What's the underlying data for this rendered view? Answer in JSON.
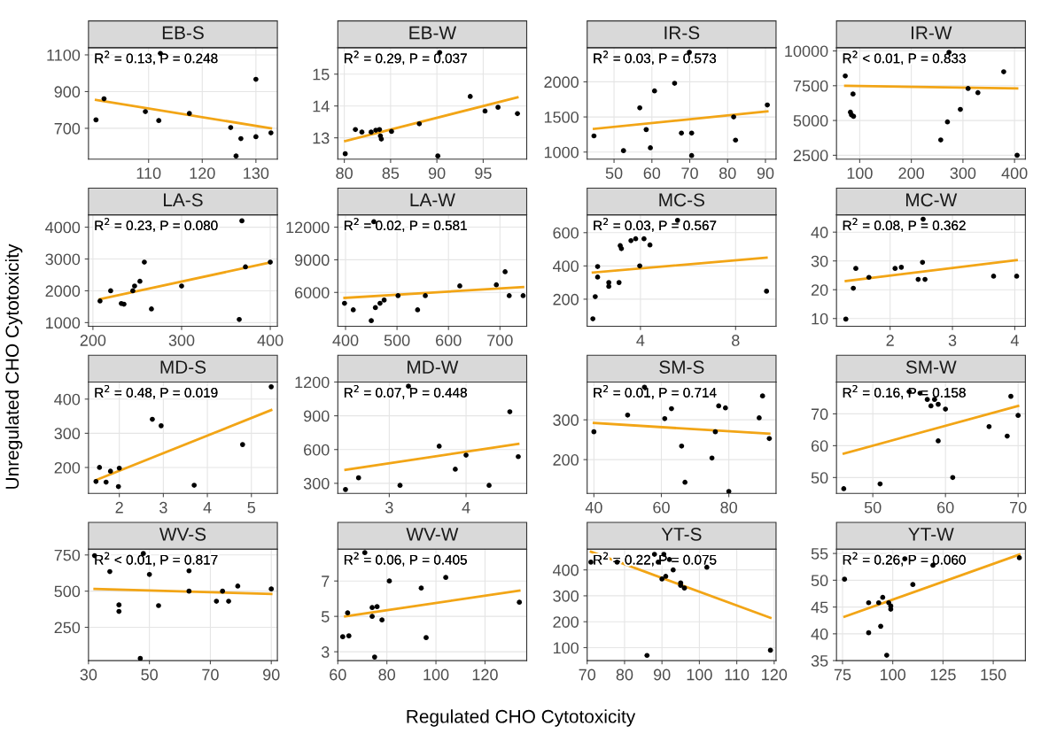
{
  "chart_data": [
    {
      "type": "scatter",
      "title": "EB-S",
      "xlim": [
        98.8,
        134
      ],
      "ylim": [
        532,
        1139
      ],
      "xticks": [
        110,
        120,
        130
      ],
      "yticks": [
        700,
        900,
        1100
      ],
      "grid": true,
      "annotations": [
        "R$^{2}$ = 0.13, P = 0.248"
      ],
      "ylabel": "Unregulated CHO Cytotoxicity",
      "series": [
        {
          "marker": "circle",
          "color": "#000000",
          "x": [
            100.2,
            101.7,
            112.2,
            109.4,
            111.9,
            117.6,
            125.3,
            127.2,
            126.3,
            130,
            130,
            132.8
          ],
          "values": [
            746,
            861,
            1108,
            791,
            742,
            781,
            704,
            644,
            549,
            967,
            654,
            675
          ]
        },
        {
          "type": "line",
          "color": "#f2a516",
          "x": [
            100.2,
            132.8
          ],
          "values": [
            855,
            700
          ]
        }
      ]
    },
    {
      "type": "scatter",
      "title": "EB-W",
      "xlim": [
        79.3,
        99.7
      ],
      "ylim": [
        12.33,
        15.83
      ],
      "xticks": [
        80,
        85,
        90,
        95
      ],
      "yticks": [
        13,
        14,
        15
      ],
      "grid": true,
      "annotations": [
        "R$^{2}$ = 0.29, P = 0.037"
      ],
      "series": [
        {
          "marker": "circle",
          "color": "#000000",
          "x": [
            80.1,
            81.2,
            81.9,
            82.9,
            83.4,
            83.8,
            83.9,
            84,
            85.1,
            88.1,
            90.3,
            90.1,
            93.6,
            95.2,
            96.6,
            98.7
          ],
          "values": [
            12.5,
            13.26,
            13.18,
            13.18,
            13.24,
            13.26,
            13.06,
            12.96,
            13.2,
            13.44,
            15.68,
            12.43,
            14.3,
            13.84,
            13.96,
            13.76
          ]
        },
        {
          "type": "line",
          "color": "#f2a516",
          "x": [
            80.1,
            98.7
          ],
          "values": [
            12.9,
            14.27
          ]
        }
      ]
    },
    {
      "type": "scatter",
      "title": "IR-S",
      "xlim": [
        42.9,
        92.8
      ],
      "ylim": [
        899,
        2486
      ],
      "xticks": [
        50,
        60,
        70,
        80,
        90
      ],
      "yticks": [
        1000,
        1500,
        2000
      ],
      "grid": true,
      "annotations": [
        "R$^{2}$ = 0.03, P = 0.573"
      ],
      "series": [
        {
          "marker": "circle",
          "color": "#000000",
          "x": [
            44.7,
            52.5,
            56.8,
            58.5,
            59.6,
            60.7,
            66,
            67.8,
            69.9,
            70.5,
            70.5,
            81.6,
            82.1,
            90.5
          ],
          "values": [
            1230,
            1020,
            1630,
            1320,
            1060,
            1870,
            1980,
            1270,
            2420,
            1270,
            950,
            1500,
            1170,
            1670
          ]
        },
        {
          "type": "line",
          "color": "#f2a516",
          "x": [
            44.7,
            90.5
          ],
          "values": [
            1330,
            1580
          ]
        }
      ]
    },
    {
      "type": "scatter",
      "title": "IR-W",
      "xlim": [
        55,
        421
      ],
      "ylim": [
        2222,
        10231
      ],
      "xticks": [
        100,
        200,
        300,
        400
      ],
      "yticks": [
        2500,
        5000,
        7500,
        10000
      ],
      "grid": true,
      "annotations": [
        "R$^{2}$ < 0.01, P = 0.833"
      ],
      "series": [
        {
          "marker": "circle",
          "color": "#000000",
          "x": [
            72,
            87,
            82,
            84,
            88,
            273,
            257,
            270,
            295,
            310,
            329,
            379,
            405
          ],
          "values": [
            8200,
            6900,
            5600,
            5400,
            5300,
            9900,
            3600,
            4900,
            5800,
            7300,
            7000,
            8500,
            2500
          ]
        },
        {
          "type": "line",
          "color": "#f2a516",
          "x": [
            72,
            405
          ],
          "values": [
            7500,
            7300
          ]
        }
      ]
    },
    {
      "type": "scatter",
      "title": "LA-S",
      "xlim": [
        195,
        408
      ],
      "ylim": [
        884,
        4387
      ],
      "xticks": [
        200,
        300,
        400
      ],
      "yticks": [
        1000,
        2000,
        3000,
        4000
      ],
      "grid": true,
      "annotations": [
        "R$^{2}$ = 0.23, P = 0.080"
      ],
      "series": [
        {
          "marker": "circle",
          "color": "#000000",
          "x": [
            208,
            220,
            232,
            235,
            245,
            247,
            253,
            258,
            266,
            300,
            365,
            368,
            372,
            400
          ],
          "values": [
            1680,
            2000,
            1600,
            1580,
            2000,
            2150,
            2300,
            2900,
            1430,
            2150,
            1100,
            4200,
            2750,
            2900
          ]
        },
        {
          "type": "line",
          "color": "#f2a516",
          "x": [
            208,
            400
          ],
          "values": [
            1740,
            2890
          ]
        }
      ]
    },
    {
      "type": "scatter",
      "title": "LA-W",
      "xlim": [
        385,
        752
      ],
      "ylim": [
        2887,
        13130
      ],
      "xticks": [
        400,
        500,
        600,
        700
      ],
      "yticks": [
        6000,
        9000,
        12000
      ],
      "grid": true,
      "annotations": [
        "R$^{2}$ = 0.02, P = 0.581"
      ],
      "series": [
        {
          "marker": "circle",
          "color": "#000000",
          "x": [
            398,
            415,
            450,
            455,
            458,
            467,
            475,
            502,
            540,
            555,
            622,
            693,
            710,
            718,
            745
          ],
          "values": [
            5000,
            4400,
            3400,
            12500,
            4600,
            5000,
            5300,
            5700,
            4400,
            5700,
            6600,
            6700,
            7900,
            5700,
            5700
          ]
        },
        {
          "type": "line",
          "color": "#f2a516",
          "x": [
            398,
            745
          ],
          "values": [
            5500,
            6500
          ]
        }
      ]
    },
    {
      "type": "scatter",
      "title": "MC-S",
      "xlim": [
        1.76,
        9.7
      ],
      "ylim": [
        37,
        707
      ],
      "xticks": [
        4,
        8
      ],
      "yticks": [
        200,
        400,
        600
      ],
      "grid": true,
      "annotations": [
        "R$^{2}$ = 0.03, P = 0.567"
      ],
      "series": [
        {
          "marker": "circle",
          "color": "#000000",
          "x": [
            2.0,
            2.1,
            2.2,
            2.2,
            2.67,
            2.67,
            3.1,
            3.15,
            3.2,
            3.6,
            3.8,
            3.97,
            4.15,
            4.4,
            5.56,
            9.3
          ],
          "values": [
            82,
            215,
            333,
            396,
            300,
            277,
            300,
            522,
            504,
            552,
            563,
            400,
            563,
            526,
            674,
            248
          ]
        },
        {
          "type": "line",
          "color": "#f2a516",
          "x": [
            2.0,
            9.3
          ],
          "values": [
            360,
            450
          ]
        }
      ]
    },
    {
      "type": "scatter",
      "title": "MC-W",
      "xlim": [
        1.14,
        4.17
      ],
      "ylim": [
        7.3,
        46
      ],
      "xticks": [
        2,
        3,
        4
      ],
      "yticks": [
        10,
        20,
        30,
        40
      ],
      "grid": true,
      "annotations": [
        "R$^{2}$ = 0.08, P = 0.362"
      ],
      "series": [
        {
          "marker": "circle",
          "color": "#000000",
          "x": [
            1.29,
            1.41,
            1.45,
            1.66,
            2.08,
            2.18,
            2.45,
            2.52,
            2.53,
            2.56,
            3.66,
            4.03
          ],
          "values": [
            9.8,
            20.5,
            27.4,
            24.3,
            27.4,
            27.8,
            23.6,
            29.5,
            44.5,
            23.6,
            24.7,
            24.7
          ]
        },
        {
          "type": "line",
          "color": "#f2a516",
          "x": [
            1.29,
            4.03
          ],
          "values": [
            23,
            30.3
          ]
        }
      ]
    },
    {
      "type": "scatter",
      "title": "MD-S",
      "xlim": [
        1.3,
        5.59
      ],
      "ylim": [
        124,
        450
      ],
      "xticks": [
        2,
        3,
        4,
        5
      ],
      "yticks": [
        200,
        300,
        400
      ],
      "grid": true,
      "annotations": [
        "R$^{2}$ = 0.48, P = 0.019"
      ],
      "series": [
        {
          "marker": "circle",
          "color": "#000000",
          "x": [
            1.47,
            1.55,
            1.7,
            1.8,
            1.98,
            2.0,
            2.75,
            2.95,
            3.7,
            4.8,
            5.45
          ],
          "values": [
            159,
            200,
            157,
            189,
            144,
            198,
            341,
            322,
            148,
            267,
            436
          ]
        },
        {
          "type": "line",
          "color": "#f2a516",
          "x": [
            1.47,
            5.45
          ],
          "values": [
            163,
            368
          ]
        }
      ]
    },
    {
      "type": "scatter",
      "title": "MD-W",
      "xlim": [
        2.33,
        4.79
      ],
      "ylim": [
        210,
        1200
      ],
      "xticks": [
        3,
        4
      ],
      "yticks": [
        300,
        600,
        900,
        1200
      ],
      "grid": true,
      "annotations": [
        "R$^{2}$ = 0.07, P = 0.448"
      ],
      "series": [
        {
          "marker": "circle",
          "color": "#000000",
          "x": [
            2.43,
            2.6,
            3.14,
            3.25,
            3.65,
            3.86,
            4.0,
            4.3,
            4.57,
            4.68
          ],
          "values": [
            245,
            349,
            282,
            1163,
            630,
            425,
            550,
            282,
            936,
            537
          ]
        },
        {
          "type": "line",
          "color": "#f2a516",
          "x": [
            2.43,
            4.68
          ],
          "values": [
            420,
            650
          ]
        }
      ]
    },
    {
      "type": "scatter",
      "title": "SM-S",
      "xlim": [
        38,
        94
      ],
      "ylim": [
        115,
        395
      ],
      "xticks": [
        40,
        60,
        80
      ],
      "yticks": [
        200,
        300
      ],
      "grid": true,
      "annotations": [
        "R$^{2}$ = 0.01, P = 0.714"
      ],
      "series": [
        {
          "marker": "circle",
          "color": "#000000",
          "x": [
            40,
            50,
            55,
            61,
            63,
            66,
            67,
            75,
            76,
            77,
            79,
            80,
            89,
            90,
            92
          ],
          "values": [
            270,
            312,
            382,
            303,
            328,
            234,
            143,
            204,
            270,
            335,
            330,
            120,
            305,
            360,
            253
          ]
        },
        {
          "type": "line",
          "color": "#f2a516",
          "x": [
            40,
            92
          ],
          "values": [
            292,
            265
          ]
        }
      ]
    },
    {
      "type": "scatter",
      "title": "SM-W",
      "xlim": [
        45,
        71
      ],
      "ylim": [
        45,
        80
      ],
      "xticks": [
        50,
        60,
        70
      ],
      "yticks": [
        50,
        60,
        70
      ],
      "grid": true,
      "annotations": [
        "R$^{2}$ = 0.16, P = 0.158"
      ],
      "series": [
        {
          "marker": "circle",
          "color": "#000000",
          "x": [
            46,
            51,
            55,
            56.5,
            57.5,
            58,
            58.5,
            59,
            59,
            60,
            61,
            66,
            68.5,
            69,
            70
          ],
          "values": [
            46.5,
            48,
            77,
            76.5,
            74.5,
            72.5,
            74.5,
            73,
            61.5,
            71.5,
            50,
            66,
            63,
            75.5,
            69.5
          ]
        },
        {
          "type": "line",
          "color": "#f2a516",
          "x": [
            46,
            70
          ],
          "values": [
            57.5,
            72.5
          ]
        }
      ]
    },
    {
      "type": "scatter",
      "title": "WV-S",
      "xlim": [
        30,
        92
      ],
      "ylim": [
        20,
        790
      ],
      "xticks": [
        30,
        50,
        70,
        90
      ],
      "yticks": [
        250,
        500,
        750
      ],
      "grid": true,
      "annotations": [
        "R$^{2}$ < 0.01, P = 0.817"
      ],
      "series": [
        {
          "marker": "circle",
          "color": "#000000",
          "x": [
            32,
            37,
            40,
            40,
            47,
            48,
            50,
            53,
            63,
            63,
            72,
            74,
            76,
            79,
            90
          ],
          "values": [
            745,
            635,
            405,
            360,
            35,
            760,
            615,
            400,
            640,
            500,
            430,
            500,
            430,
            535,
            515
          ]
        },
        {
          "type": "line",
          "color": "#f2a516",
          "x": [
            32,
            90
          ],
          "values": [
            515,
            480
          ]
        }
      ]
    },
    {
      "type": "scatter",
      "title": "WV-W",
      "xlim": [
        60,
        137
      ],
      "ylim": [
        2.5,
        8.8
      ],
      "xticks": [
        60,
        80,
        100,
        120
      ],
      "yticks": [
        3,
        5,
        7
      ],
      "grid": true,
      "annotations": [
        "R$^{2}$ = 0.06, P = 0.405"
      ],
      "xlabel": "Regulated CHO Cytotoxicity",
      "series": [
        {
          "marker": "circle",
          "color": "#000000",
          "x": [
            62,
            64,
            64.5,
            71,
            74,
            74,
            75,
            76,
            78,
            81,
            94,
            96,
            104,
            134
          ],
          "values": [
            3.85,
            5.2,
            3.9,
            8.6,
            5.0,
            5.5,
            2.7,
            5.55,
            4.8,
            7.0,
            6.6,
            3.8,
            7.2,
            5.8
          ]
        },
        {
          "type": "line",
          "color": "#f2a516",
          "x": [
            63,
            134
          ],
          "values": [
            5.0,
            6.45
          ]
        }
      ]
    },
    {
      "type": "scatter",
      "title": "YT-S",
      "xlim": [
        70,
        120.5
      ],
      "ylim": [
        50,
        480
      ],
      "xticks": [
        70,
        80,
        90,
        100,
        110,
        120
      ],
      "yticks": [
        100,
        200,
        300,
        400
      ],
      "grid": true,
      "annotations": [
        "R$^{2}$ = 0.22, P = 0.075"
      ],
      "series": [
        {
          "marker": "circle",
          "color": "#000000",
          "x": [
            71,
            78,
            86,
            88,
            89,
            90,
            90.5,
            91,
            92,
            93,
            95,
            95,
            96,
            102,
            119
          ],
          "values": [
            430,
            430,
            70,
            460,
            430,
            365,
            460,
            375,
            440,
            400,
            350,
            340,
            330,
            410,
            90
          ]
        },
        {
          "type": "line",
          "color": "#f2a516",
          "x": [
            71,
            119
          ],
          "values": [
            470,
            215
          ]
        }
      ]
    },
    {
      "type": "scatter",
      "title": "YT-W",
      "xlim": [
        72,
        166
      ],
      "ylim": [
        35,
        55.8
      ],
      "xticks": [
        75,
        100,
        125,
        150
      ],
      "yticks": [
        35,
        40,
        45,
        50,
        55
      ],
      "grid": true,
      "annotations": [
        "R$^{2}$ = 0.26, P = 0.060"
      ],
      "series": [
        {
          "marker": "circle",
          "color": "#000000",
          "x": [
            76,
            88,
            88,
            93,
            94,
            95,
            97,
            98,
            99,
            99,
            106,
            110,
            120,
            163
          ],
          "values": [
            50.2,
            45.8,
            40.2,
            45.8,
            41.4,
            46.8,
            36,
            45.8,
            45.2,
            44.6,
            54,
            49.2,
            52.8,
            54.2
          ]
        },
        {
          "type": "line",
          "color": "#f2a516",
          "x": [
            76,
            163
          ],
          "values": [
            43.2,
            54.8
          ]
        }
      ]
    }
  ]
}
